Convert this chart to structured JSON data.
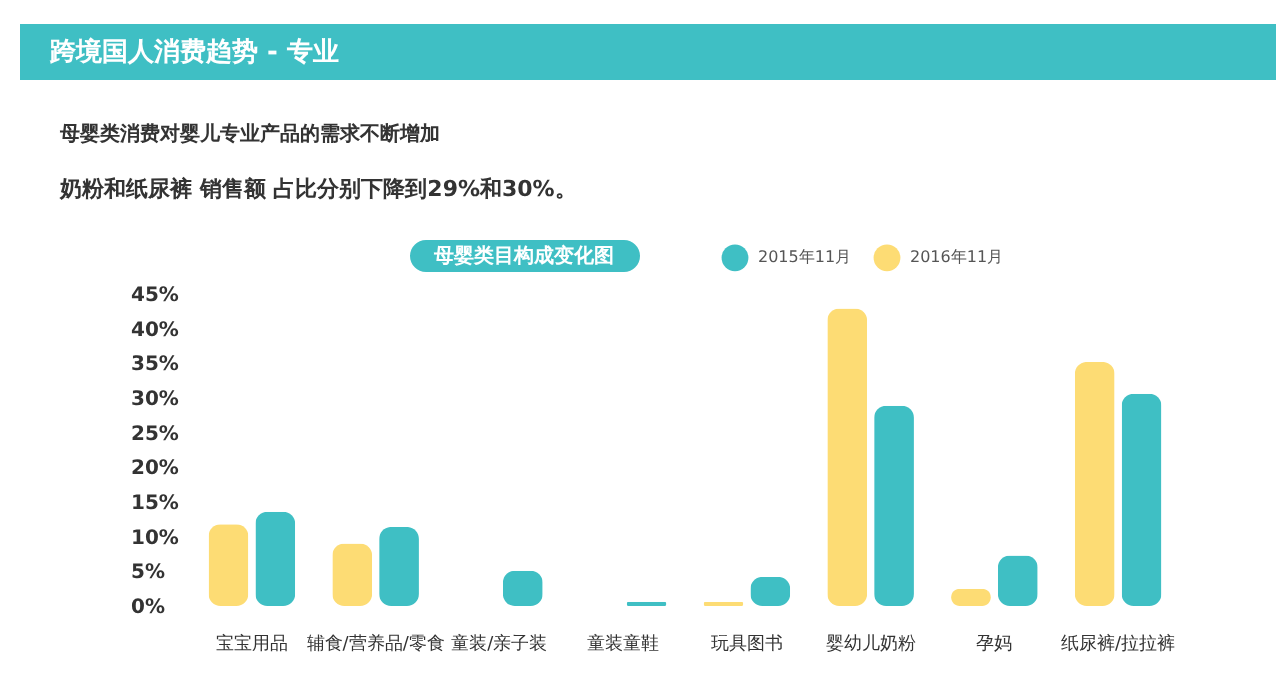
{
  "chart_data": {
    "type": "bar",
    "title": "跨境国人消费趋势 - 专业",
    "subtitle": "母婴类消费对婴儿专业产品的需求不断增加",
    "annotations": [
      "奶粉和纸尿裤 销售额 占比分别下降到29%和30%。",
      "母婴类目构成变化图"
    ],
    "categories": [
      "宝宝用品",
      "辅食/营养品/零食",
      "童装/亲子装",
      "童装童鞋",
      "玩具图书",
      "婴幼儿奶粉",
      "孕妈",
      "纸尿裤/拉拉裤"
    ],
    "series": [
      {
        "name": "2015年11月",
        "color": "#3fbfc4",
        "values": [
          13.6,
          11.4,
          5.1,
          0.6,
          4.2,
          28.9,
          7.3,
          30.6
        ]
      },
      {
        "name": "2016年11月",
        "color": "#fddc74",
        "values": [
          11.8,
          9.0,
          null,
          null,
          0.6,
          42.9,
          2.5,
          35.2
        ]
      }
    ],
    "ylim": [
      0,
      45
    ],
    "yticks": [
      {
        "value": 0,
        "label": "0%"
      },
      {
        "value": 5,
        "label": "5%"
      },
      {
        "value": 10,
        "label": "10%"
      },
      {
        "value": 15,
        "label": "15%"
      },
      {
        "value": 20,
        "label": "20%"
      },
      {
        "value": 25,
        "label": "25%"
      },
      {
        "value": 30,
        "label": "30%"
      },
      {
        "value": 35,
        "label": "35%"
      },
      {
        "value": 40,
        "label": "40%"
      },
      {
        "value": 45,
        "label": "45%"
      }
    ],
    "grid": false,
    "legend": "top right"
  }
}
